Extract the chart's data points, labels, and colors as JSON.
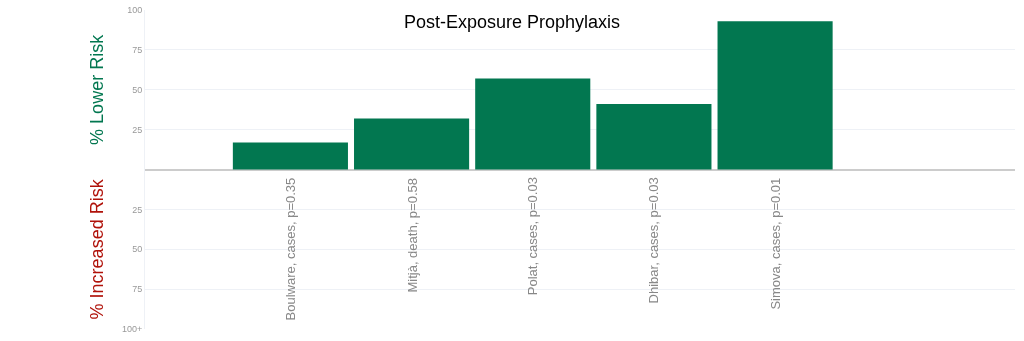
{
  "chart_data": {
    "type": "bar",
    "title": "Post-Exposure Prophylaxis",
    "ylabel": "% Lower Risk",
    "annotations": [
      "% Increased Risk"
    ],
    "categories": [
      "Boulware, cases, p=0.35",
      "Mitjà, death, p=0.58",
      "Polat, cases, p=0.03",
      "Dhibar, cases, p=0.03",
      "Simova, cases, p=0.01"
    ],
    "values": [
      17,
      32,
      57,
      41,
      93
    ],
    "color": "#027750",
    "ylim": [
      -100,
      100
    ],
    "yticks": [
      {
        "value": -100,
        "label": "100+"
      },
      {
        "value": -75,
        "label": "75"
      },
      {
        "value": -50,
        "label": "50"
      },
      {
        "value": -25,
        "label": "25"
      },
      {
        "value": 0,
        "label": null
      },
      25,
      50,
      75,
      100
    ],
    "grid": "y"
  }
}
